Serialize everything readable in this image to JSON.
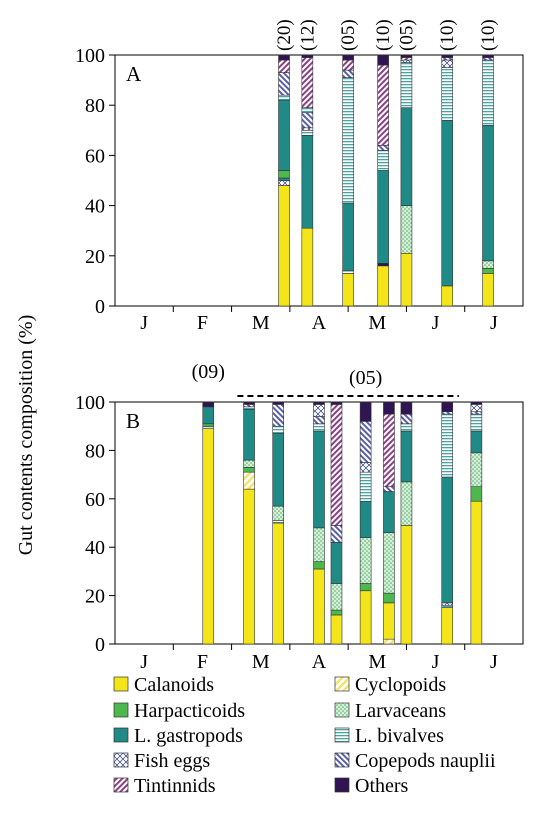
{
  "y_axis_label": "Gut contents composition (%)",
  "colors": {
    "calanoids": "#f3e51a",
    "cyclopoids": "#f7ec74",
    "harpacticoids": "#4db84e",
    "larvaceans": "#b9e3c0",
    "l_gastropods": "#1f8a86",
    "l_bivalves": "#c9e7e6",
    "fish_eggs": "#ffffff",
    "copepods_nauplii": "#b8b8de",
    "tintinnids": "#caa3ca",
    "others": "#2f1551"
  },
  "legend": [
    {
      "key": "calanoids",
      "label": "Calanoids",
      "pattern": "solid"
    },
    {
      "key": "cyclopoids",
      "label": "Cyclopoids",
      "pattern": "diag"
    },
    {
      "key": "harpacticoids",
      "label": "Harpacticoids",
      "pattern": "solid"
    },
    {
      "key": "larvaceans",
      "label": "Larvaceans",
      "pattern": "dots"
    },
    {
      "key": "l_gastropods",
      "label": "L. gastropods",
      "pattern": "solid"
    },
    {
      "key": "l_bivalves",
      "label": "L. bivalves",
      "pattern": "hlines"
    },
    {
      "key": "fish_eggs",
      "label": "Fish eggs",
      "pattern": "cross"
    },
    {
      "key": "copepods_nauplii",
      "label": "Copepods nauplii",
      "pattern": "diag"
    },
    {
      "key": "tintinnids",
      "label": "Tintinnids",
      "pattern": "diag"
    },
    {
      "key": "others",
      "label": "Others",
      "pattern": "solid"
    }
  ],
  "chart_data": [
    {
      "type": "bar",
      "stacked": true,
      "panel_label": "A",
      "ylim": [
        0,
        100
      ],
      "yticks": [
        0,
        20,
        40,
        60,
        80,
        100
      ],
      "month_labels": [
        "J",
        "F",
        "M",
        "A",
        "M",
        "J",
        "J"
      ],
      "sample_sizes": [
        {
          "x": 2.9,
          "label": "(20)"
        },
        {
          "x": 3.3,
          "label": "(12)"
        },
        {
          "x": 4.0,
          "label": "(05)"
        },
        {
          "x": 4.6,
          "label": "(10)"
        },
        {
          "x": 5.0,
          "label": "(05)"
        },
        {
          "x": 5.7,
          "label": "(10)"
        },
        {
          "x": 6.4,
          "label": "(10)"
        }
      ],
      "bars": [
        {
          "x": 2.9,
          "segments": [
            [
              "calanoids",
              48
            ],
            [
              "fish_eggs",
              2
            ],
            [
              "l_gastropods",
              1
            ],
            [
              "harpacticoids",
              3
            ],
            [
              "l_gastropods",
              28
            ],
            [
              "l_bivalves",
              2
            ],
            [
              "copepods_nauplii",
              9
            ],
            [
              "tintinnids",
              5
            ],
            [
              "others",
              2
            ]
          ]
        },
        {
          "x": 3.3,
          "segments": [
            [
              "calanoids",
              31
            ],
            [
              "l_gastropods",
              37
            ],
            [
              "l_bivalves",
              2
            ],
            [
              "fish_eggs",
              1
            ],
            [
              "copepods_nauplii",
              6
            ],
            [
              "l_bivalves",
              2
            ],
            [
              "tintinnids",
              20
            ],
            [
              "others",
              1
            ]
          ]
        },
        {
          "x": 4.0,
          "segments": [
            [
              "calanoids",
              13
            ],
            [
              "l_bivalves",
              1
            ],
            [
              "l_gastropods",
              27
            ],
            [
              "l_bivalves",
              50
            ],
            [
              "copepods_nauplii",
              3
            ],
            [
              "tintinnids",
              4
            ],
            [
              "others",
              2
            ]
          ]
        },
        {
          "x": 4.6,
          "segments": [
            [
              "calanoids",
              16
            ],
            [
              "others",
              1
            ],
            [
              "l_gastropods",
              37
            ],
            [
              "l_bivalves",
              8
            ],
            [
              "copepods_nauplii",
              2
            ],
            [
              "tintinnids",
              32
            ],
            [
              "others",
              4
            ]
          ]
        },
        {
          "x": 5.0,
          "segments": [
            [
              "calanoids",
              21
            ],
            [
              "larvaceans",
              19
            ],
            [
              "l_gastropods",
              39
            ],
            [
              "l_bivalves",
              18
            ],
            [
              "fish_eggs",
              1
            ],
            [
              "tintinnids",
              1
            ],
            [
              "others",
              1
            ]
          ]
        },
        {
          "x": 5.7,
          "segments": [
            [
              "calanoids",
              8
            ],
            [
              "l_gastropods",
              66
            ],
            [
              "l_bivalves",
              21
            ],
            [
              "fish_eggs",
              3
            ],
            [
              "copepods_nauplii",
              1
            ],
            [
              "others",
              1
            ]
          ]
        },
        {
          "x": 6.4,
          "segments": [
            [
              "calanoids",
              13
            ],
            [
              "harpacticoids",
              2
            ],
            [
              "larvaceans",
              3
            ],
            [
              "l_gastropods",
              54
            ],
            [
              "l_bivalves",
              26
            ],
            [
              "copepods_nauplii",
              1
            ],
            [
              "others",
              1
            ]
          ]
        }
      ]
    },
    {
      "type": "bar",
      "stacked": true,
      "panel_label": "B",
      "ylim": [
        0,
        100
      ],
      "yticks": [
        0,
        20,
        40,
        60,
        80,
        100
      ],
      "month_labels": [
        "J",
        "F",
        "M",
        "A",
        "M",
        "J",
        "J"
      ],
      "sample_sizes": [
        {
          "x": 1.6,
          "label": "(09)"
        },
        {
          "x": 4.3,
          "label": "(05)"
        }
      ],
      "dashed_bracket": {
        "x_start": 2.1,
        "x_end": 5.9
      },
      "bars": [
        {
          "x": 1.6,
          "segments": [
            [
              "calanoids",
              89
            ],
            [
              "l_bivalves",
              1
            ],
            [
              "harpacticoids",
              1
            ],
            [
              "l_gastropods",
              7
            ],
            [
              "others",
              2
            ]
          ]
        },
        {
          "x": 2.3,
          "segments": [
            [
              "calanoids",
              64
            ],
            [
              "cyclopoids",
              7
            ],
            [
              "harpacticoids",
              2
            ],
            [
              "larvaceans",
              3
            ],
            [
              "l_gastropods",
              21
            ],
            [
              "l_bivalves",
              1
            ],
            [
              "copepods_nauplii",
              1
            ],
            [
              "others",
              1
            ]
          ]
        },
        {
          "x": 2.8,
          "segments": [
            [
              "calanoids",
              50
            ],
            [
              "l_bivalves",
              1
            ],
            [
              "larvaceans",
              6
            ],
            [
              "l_gastropods",
              30
            ],
            [
              "l_bivalves",
              3
            ],
            [
              "copepods_nauplii",
              9
            ],
            [
              "others",
              1
            ]
          ]
        },
        {
          "x": 3.5,
          "segments": [
            [
              "calanoids",
              31
            ],
            [
              "harpacticoids",
              3
            ],
            [
              "larvaceans",
              14
            ],
            [
              "l_gastropods",
              40
            ],
            [
              "l_bivalves",
              3
            ],
            [
              "copepods_nauplii",
              3
            ],
            [
              "fish_eggs",
              5
            ],
            [
              "others",
              1
            ]
          ]
        },
        {
          "x": 3.8,
          "segments": [
            [
              "calanoids",
              12
            ],
            [
              "harpacticoids",
              2
            ],
            [
              "larvaceans",
              11
            ],
            [
              "l_gastropods",
              17
            ],
            [
              "copepods_nauplii",
              7
            ],
            [
              "tintinnids",
              50
            ],
            [
              "others",
              1
            ]
          ]
        },
        {
          "x": 4.3,
          "segments": [
            [
              "calanoids",
              22
            ],
            [
              "harpacticoids",
              3
            ],
            [
              "larvaceans",
              19
            ],
            [
              "l_gastropods",
              15
            ],
            [
              "l_bivalves",
              12
            ],
            [
              "fish_eggs",
              4
            ],
            [
              "copepods_nauplii",
              17
            ],
            [
              "others",
              8
            ]
          ]
        },
        {
          "x": 4.7,
          "segments": [
            [
              "cyclopoids",
              2
            ],
            [
              "calanoids",
              15
            ],
            [
              "harpacticoids",
              4
            ],
            [
              "larvaceans",
              25
            ],
            [
              "l_gastropods",
              17
            ],
            [
              "copepods_nauplii",
              2
            ],
            [
              "tintinnids",
              30
            ],
            [
              "others",
              5
            ]
          ]
        },
        {
          "x": 5.0,
          "segments": [
            [
              "calanoids",
              49
            ],
            [
              "larvaceans",
              18
            ],
            [
              "l_gastropods",
              21
            ],
            [
              "l_bivalves",
              3
            ],
            [
              "copepods_nauplii",
              4
            ],
            [
              "others",
              5
            ]
          ]
        },
        {
          "x": 5.7,
          "segments": [
            [
              "calanoids",
              15
            ],
            [
              "l_bivalves",
              1
            ],
            [
              "fish_eggs",
              1
            ],
            [
              "l_gastropods",
              52
            ],
            [
              "l_bivalves",
              26
            ],
            [
              "copepods_nauplii",
              1
            ],
            [
              "others",
              4
            ]
          ]
        },
        {
          "x": 6.2,
          "segments": [
            [
              "calanoids",
              59
            ],
            [
              "harpacticoids",
              6
            ],
            [
              "larvaceans",
              14
            ],
            [
              "l_gastropods",
              9
            ],
            [
              "l_bivalves",
              7
            ],
            [
              "copepods_nauplii",
              1
            ],
            [
              "fish_eggs",
              3
            ],
            [
              "others",
              1
            ]
          ]
        }
      ]
    }
  ]
}
